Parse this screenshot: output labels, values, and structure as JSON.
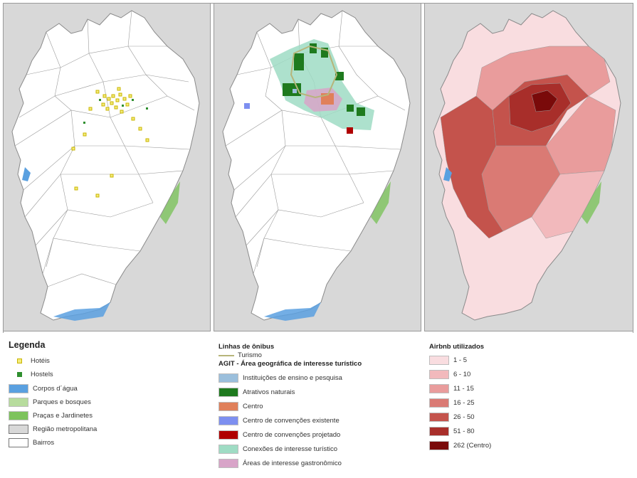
{
  "colors": {
    "background": "#d8d8d8",
    "bairros_fill": "#ffffff",
    "boundary": "#8a8a8a",
    "water": "#5aa0e0",
    "parks": "#b7dc9d",
    "squares": "#7dc35c",
    "metro_region": "#d8d8d8",
    "hotel": "#e6d200",
    "hostel": "#2f8f2f",
    "bus_tourism": "#b7b57a",
    "teaching": "#9bbfdc",
    "natural": "#1e7a1e",
    "center": "#e0805a",
    "convention_existing": "#7d8ff0",
    "convention_projected": "#b00000",
    "tourism_connections": "#9fdcc4",
    "gastronomic": "#d8a4c8"
  },
  "legend1": {
    "title": "Legenda",
    "items": [
      {
        "label": "Hotéis",
        "kind": "hotel-dot"
      },
      {
        "label": "Hostels",
        "kind": "hostel-dot"
      },
      {
        "label": "Corpos d´água",
        "color": "#5aa0e0"
      },
      {
        "label": "Parques e bosques",
        "color": "#b7dc9d"
      },
      {
        "label": "Praças e Jardinetes",
        "color": "#7dc35c"
      },
      {
        "label": "Região metropolitana",
        "color": "#d8d8d8"
      },
      {
        "label": "Bairros",
        "color": "#ffffff"
      }
    ]
  },
  "legend2": {
    "bus_title": "Linhas de ônibus",
    "bus_item": "Turismo",
    "agit_title": "AGIT - Área geográfica de interesse turístico",
    "items": [
      {
        "label": "Instituições de ensino e pesquisa",
        "color": "#9bbfdc"
      },
      {
        "label": "Atrativos naturais",
        "color": "#1e7a1e"
      },
      {
        "label": "Centro",
        "color": "#e0805a"
      },
      {
        "label": "Centro de convenções existente",
        "color": "#7d8ff0"
      },
      {
        "label": "Centro de convenções projetado",
        "color": "#b00000"
      },
      {
        "label": "Conexões de interesse turístico",
        "color": "#9fdcc4"
      },
      {
        "label": "Áreas de interesse gastronômico",
        "color": "#d8a4c8"
      }
    ]
  },
  "legend3": {
    "title": "Airbnb utilizados",
    "items": [
      {
        "label": "1 - 5",
        "color": "#f9dde0"
      },
      {
        "label": "6 - 10",
        "color": "#f2b9bc"
      },
      {
        "label": "11 - 15",
        "color": "#e99c9c"
      },
      {
        "label": "16 - 25",
        "color": "#da7a74"
      },
      {
        "label": "26 - 50",
        "color": "#c4534c"
      },
      {
        "label": "51 - 80",
        "color": "#a82e2a"
      },
      {
        "label": "262 (Centro)",
        "color": "#7a0a0a"
      }
    ]
  }
}
